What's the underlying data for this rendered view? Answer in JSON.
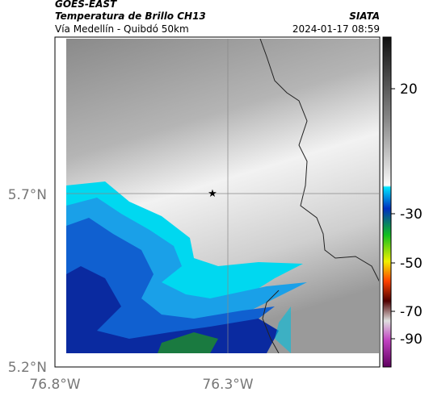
{
  "header": {
    "source": "GOES-EAST",
    "title": "Temperatura de Brillo CH13",
    "subtitle": "Vía Medellín - Quibdó 50km",
    "brand": "SIATA",
    "timestamp": "2024-01-17 08:59"
  },
  "axes": {
    "latitude_labels": [
      "5.7°N",
      "5.2°N"
    ],
    "longitude_labels": [
      "76.8°W",
      "76.3°W"
    ]
  },
  "colorbar": {
    "labels": [
      "20",
      "-30",
      "-50",
      "-70",
      "-90"
    ]
  }
}
